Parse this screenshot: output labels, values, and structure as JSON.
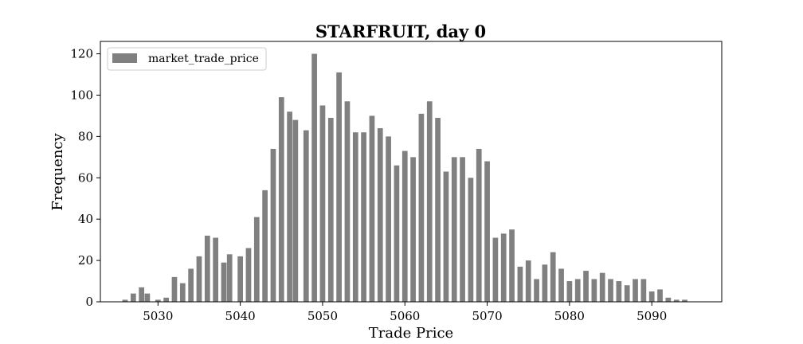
{
  "chart_data": {
    "type": "bar",
    "title": "STARFRUIT, day 0",
    "xlabel": "Trade Price",
    "ylabel": "Frequency",
    "xlim": [
      5023,
      5098.5
    ],
    "ylim": [
      0,
      126
    ],
    "xticks": [
      5030,
      5040,
      5050,
      5060,
      5070,
      5080,
      5090
    ],
    "yticks": [
      0,
      20,
      40,
      60,
      80,
      100,
      120
    ],
    "grid": false,
    "legend_position": "top-left",
    "bar_width": 0.65,
    "bar_color": "#808080",
    "series": [
      {
        "name": "market_trade_price",
        "x": [
          5026,
          5027,
          5028,
          5028.7,
          5030,
          5031,
          5032,
          5033,
          5034,
          5035,
          5036,
          5037,
          5038,
          5038.7,
          5040,
          5041,
          5042,
          5043,
          5044,
          5045,
          5046,
          5046.7,
          5048,
          5049,
          5050,
          5051,
          5052,
          5053,
          5054,
          5055,
          5056,
          5057,
          5058,
          5059,
          5060,
          5061,
          5062,
          5063,
          5064,
          5065,
          5066,
          5067,
          5068,
          5069,
          5070,
          5071,
          5072,
          5073,
          5074,
          5075,
          5076,
          5077,
          5078,
          5079,
          5080,
          5081,
          5082,
          5083,
          5084,
          5085,
          5086,
          5087,
          5088,
          5089,
          5090,
          5091,
          5092,
          5093,
          5094
        ],
        "values": [
          1,
          4,
          7,
          4,
          1,
          2,
          12,
          9,
          16,
          22,
          32,
          31,
          19,
          23,
          22,
          26,
          41,
          54,
          74,
          99,
          92,
          88,
          83,
          120,
          95,
          89,
          111,
          97,
          82,
          82,
          90,
          84,
          80,
          66,
          73,
          70,
          91,
          97,
          89,
          63,
          70,
          70,
          60,
          74,
          68,
          31,
          33,
          35,
          17,
          20,
          11,
          18,
          24,
          16,
          10,
          11,
          15,
          11,
          14,
          11,
          10,
          8,
          11,
          11,
          5,
          6,
          2,
          1,
          1
        ]
      }
    ]
  }
}
